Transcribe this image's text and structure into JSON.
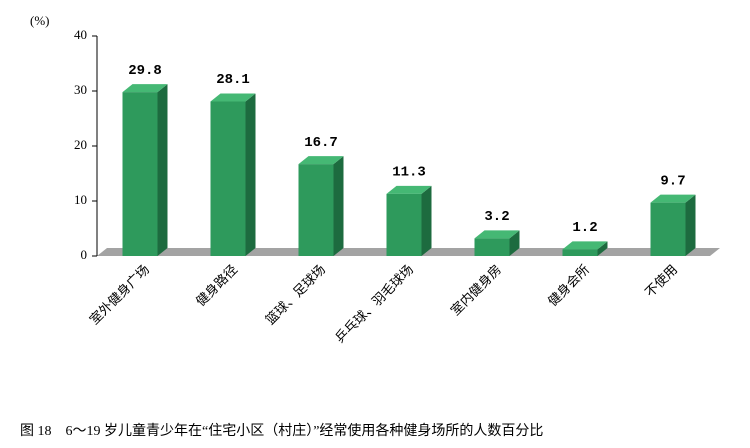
{
  "chart_data": {
    "type": "bar",
    "title": "图 18　6～19 岁儿童青少年在“住宅小区（村庄）”经常使用各种健身场所的人数百分比",
    "y_label": "(%)",
    "categories": [
      "室外健身广场",
      "健身路径",
      "篮球、足球场",
      "乒乓球、羽毛球场",
      "室内健身房",
      "健身会所",
      "不使用"
    ],
    "values": [
      29.8,
      28.1,
      16.7,
      11.3,
      3.2,
      1.2,
      9.7
    ],
    "color": "#2e9a5c",
    "ylim": [
      0,
      40
    ],
    "yticks": [
      0,
      10,
      20,
      30,
      40
    ]
  }
}
